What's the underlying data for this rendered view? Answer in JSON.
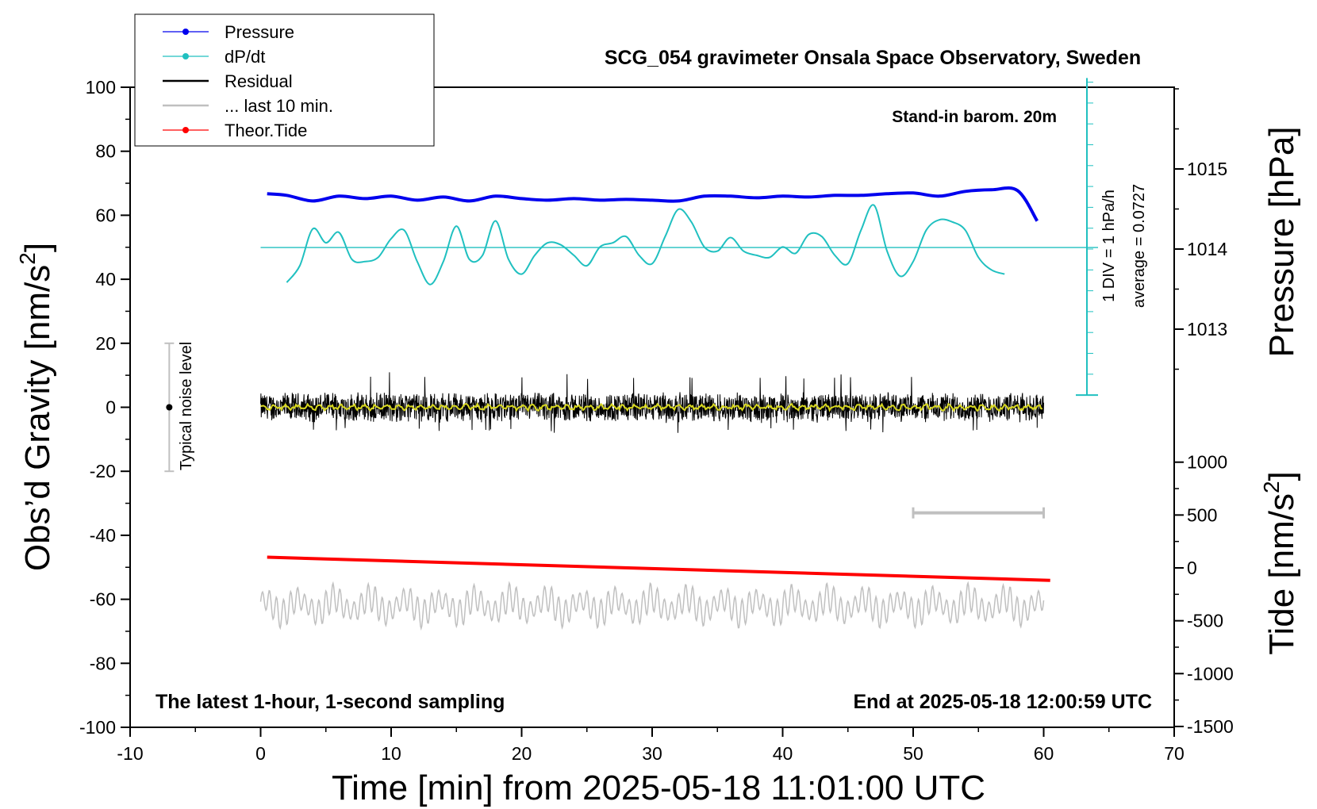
{
  "chart_data": {
    "type": "line",
    "title": "SCG_054 gravimeter Onsala Space Observatory, Sweden",
    "xlabel": "Time [min] from 2025-05-18 11:01:00 UTC",
    "ylabel_left_main": "Obs’d Gravity [nm/s",
    "ylabel_left_sup": "2",
    "ylabel_left_end": "]",
    "ylabel_right_pressure": "Pressure [hPa]",
    "ylabel_right_tide_main": "Tide [nm/s",
    "ylabel_right_tide_sup": "2",
    "ylabel_right_tide_end": "]",
    "xlim": [
      -10,
      70
    ],
    "ylim": [
      -100,
      100
    ],
    "x_ticks": [
      "-10",
      "0",
      "10",
      "20",
      "30",
      "40",
      "50",
      "60",
      "70"
    ],
    "y_ticks": [
      "-100",
      "-80",
      "-60",
      "-40",
      "-20",
      "0",
      "20",
      "40",
      "60",
      "80",
      "100"
    ],
    "pressure_ticks": [
      "1013",
      "1014",
      "1015"
    ],
    "pressure_tick_values": [
      1013,
      1014,
      1015
    ],
    "tide_ticks": [
      "-1500",
      "-1000",
      "-500",
      "0",
      "500",
      "1000"
    ],
    "tide_tick_values": [
      -1500,
      -1000,
      -500,
      0,
      500,
      1000
    ],
    "grid": false,
    "legend_position": "top-left",
    "legend": [
      {
        "name": "Pressure",
        "color": "#0000ee",
        "marker": true
      },
      {
        "name": "dP/dt",
        "color": "#20c0c0",
        "marker": true
      },
      {
        "name": "Residual",
        "color": "#000000",
        "marker": false
      },
      {
        "name": "... last 10 min.",
        "color": "#c0c0c0",
        "marker": false
      },
      {
        "name": "Theor.Tide",
        "color": "#ff0000",
        "marker": true
      }
    ],
    "annotations": {
      "stand_in": "Stand-in barom. 20m",
      "div_label": "1 DIV = 1 hPa/h",
      "average_label": "average = 0.0727",
      "noise_label": "Typical noise level",
      "latest_label": "The latest 1-hour, 1-second sampling",
      "end_label": "End at 2025-05-18 12:00:59 UTC"
    },
    "noise_bar": {
      "x": -7,
      "y_low": -20,
      "y_high": 20
    },
    "last10_bracket": {
      "x_start": 50,
      "x_end": 60,
      "y": -33
    },
    "series": [
      {
        "name": "Pressure",
        "axis": "pressure_hPa",
        "color": "#0000ee",
        "x": [
          0.5,
          2,
          4,
          6,
          8,
          10,
          12,
          14,
          16,
          18,
          20,
          22,
          24,
          26,
          28,
          30,
          32,
          34,
          36,
          38,
          40,
          42,
          44,
          46,
          48,
          50,
          52,
          54,
          56,
          58,
          59.5
        ],
        "y": [
          1014.69,
          1014.67,
          1014.6,
          1014.66,
          1014.63,
          1014.66,
          1014.61,
          1014.65,
          1014.6,
          1014.66,
          1014.63,
          1014.61,
          1014.63,
          1014.61,
          1014.62,
          1014.61,
          1014.6,
          1014.66,
          1014.66,
          1014.64,
          1014.66,
          1014.65,
          1014.67,
          1014.67,
          1014.69,
          1014.7,
          1014.66,
          1014.72,
          1014.74,
          1014.73,
          1014.35
        ]
      },
      {
        "name": "dP/dt",
        "axis": "dpdt_div",
        "color": "#20c0c0",
        "average": 0.0727,
        "x": [
          2,
          3,
          4,
          5,
          6,
          7,
          8,
          9,
          10,
          11,
          12,
          13,
          14,
          15,
          16,
          17,
          18,
          19,
          20,
          21,
          22,
          23,
          24,
          25,
          26,
          27,
          28,
          29,
          30,
          31,
          32,
          33,
          34,
          35,
          36,
          37,
          38,
          39,
          40,
          41,
          42,
          43,
          44,
          45,
          46,
          47,
          48,
          49,
          50,
          51,
          52,
          53,
          54,
          55,
          56,
          57
        ],
        "y": [
          -1.6,
          -0.8,
          0.97,
          0.3,
          0.8,
          -0.5,
          -0.6,
          -0.4,
          0.5,
          0.9,
          -0.6,
          -1.7,
          -0.6,
          1.1,
          -0.5,
          -0.3,
          1.35,
          -0.5,
          -1.2,
          -0.3,
          0.3,
          0.2,
          -0.3,
          -0.8,
          0.1,
          0.3,
          0.6,
          -0.3,
          -0.7,
          0.6,
          1.9,
          1.3,
          0.1,
          -0.1,
          0.55,
          -0.1,
          -0.3,
          -0.4,
          0.1,
          -0.2,
          0.7,
          0.6,
          -0.3,
          -0.7,
          0.9,
          2.1,
          -0.1,
          -1.3,
          -0.6,
          0.9,
          1.4,
          1.3,
          0.9,
          -0.4,
          -1.0,
          -1.2
        ]
      },
      {
        "name": "Residual",
        "axis": "gravity",
        "color": "#000000",
        "x_range": [
          0,
          60
        ],
        "y_mean": 0,
        "y_amplitude": 5,
        "y_extremes": [
          -8,
          11
        ]
      },
      {
        "name": "Residual smoothed",
        "axis": "gravity",
        "color": "#d8d820",
        "x_range": [
          0,
          60
        ],
        "y_mean": 0,
        "y_amplitude": 1
      },
      {
        "name": "... last 10 min.",
        "axis": "gravity",
        "color": "#c0c0c0",
        "x_range": [
          0,
          60
        ],
        "y_center": -62,
        "y_amplitude": 6
      },
      {
        "name": "Theor.Tide",
        "axis": "tide",
        "color": "#ff0000",
        "x": [
          0.5,
          60.5
        ],
        "y": [
          101,
          -118
        ]
      }
    ]
  }
}
